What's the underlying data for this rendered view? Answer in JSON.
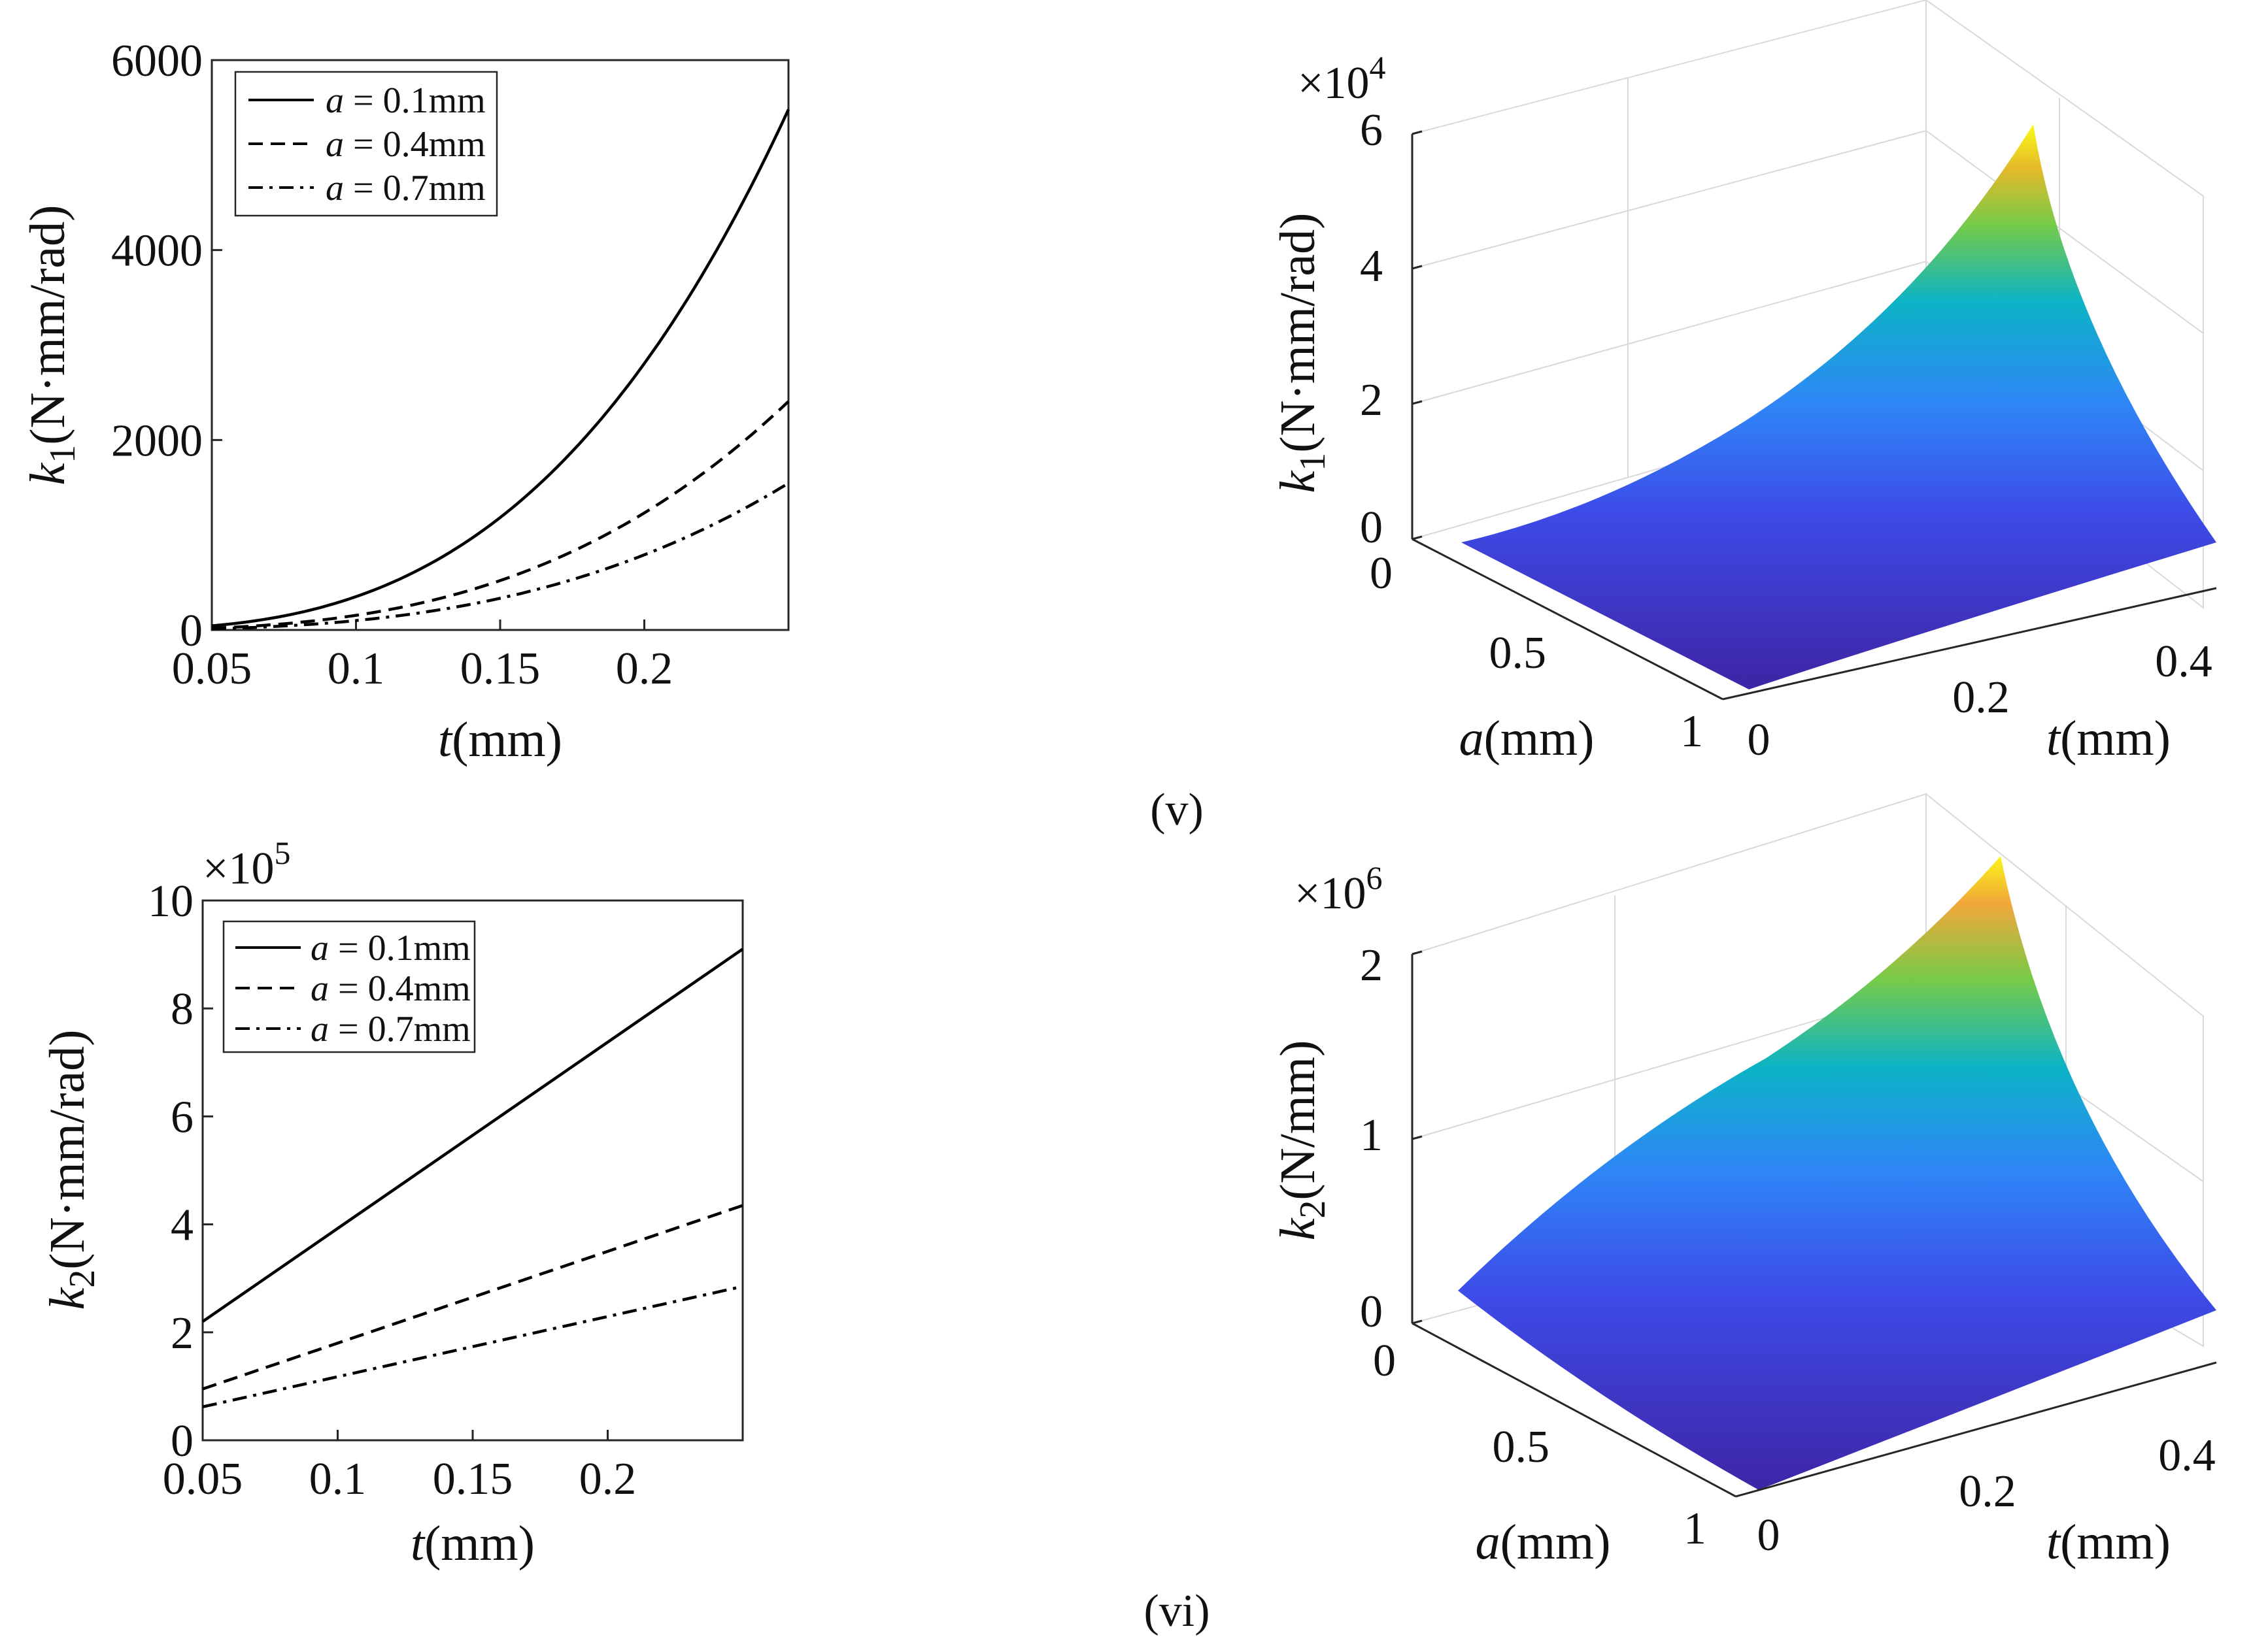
{
  "figure": {
    "panel_labels": [
      "(v)",
      "(vi)"
    ]
  },
  "colors": {
    "surface_low": "#3e26a8",
    "surface_mid1": "#2e87f7",
    "surface_mid2": "#0cb3c6",
    "surface_high": "#77cb47",
    "surface_peak": "#f9fb15",
    "line": "#000000",
    "grid": "#d9d9d9"
  },
  "chart_data": [
    {
      "id": "k1_t",
      "type": "line",
      "x": [
        0.05,
        0.075,
        0.1,
        0.125,
        0.15,
        0.175,
        0.2,
        0.225,
        0.25
      ],
      "series": [
        {
          "name": "a = 0.1mm",
          "dash": "solid",
          "values": [
            44,
            148,
            351,
            685,
            1184,
            1880,
            2806,
            3996,
            5480
          ]
        },
        {
          "name": "a = 0.4mm",
          "dash": "dashed",
          "values": [
            19,
            65,
            154,
            301,
            520,
            826,
            1232,
            1755,
            2407
          ]
        },
        {
          "name": "a = 0.7mm",
          "dash": "dashdot",
          "values": [
            12,
            42,
            99,
            193,
            334,
            530,
            791,
            1126,
            1545
          ]
        }
      ],
      "xlabel": "t(mm)",
      "xlabel_var": "t",
      "xlabel_unit": "(mm)",
      "ylabel": "k1(N·mm/rad)",
      "ylabel_var": "k",
      "ylabel_sub": "1",
      "ylabel_unit": "(N·mm/rad)",
      "xlim": [
        0.05,
        0.25
      ],
      "ylim": [
        0,
        6000
      ],
      "xticks": [
        0.05,
        0.1,
        0.15,
        0.2
      ],
      "xtick_labels": [
        "0.05",
        "0.1",
        "0.15",
        "0.2"
      ],
      "yticks": [
        0,
        2000,
        4000,
        6000
      ],
      "ytick_labels": [
        "0",
        "2000",
        "4000",
        "6000"
      ],
      "legend": {
        "position": "top-left",
        "entries": [
          {
            "var": "a",
            "rest": " = 0.1mm"
          },
          {
            "var": "a",
            "rest": " = 0.4mm"
          },
          {
            "var": "a",
            "rest": " = 0.7mm"
          }
        ]
      },
      "grid": false
    },
    {
      "id": "k1_surface",
      "type": "surface",
      "title": "",
      "zlabel": "k1(N·mm/rad)",
      "zlabel_var": "k",
      "zlabel_sub": "1",
      "zlabel_unit": "(N·mm/rad)",
      "xlabel": "t(mm)",
      "xlabel_var": "t",
      "xlabel_unit": "(mm)",
      "ylabel": "a(mm)",
      "ylabel_var": "a",
      "ylabel_unit": "(mm)",
      "zscale_label": "×10",
      "zscale_exp": "4",
      "zlim": [
        0,
        6
      ],
      "zticks": [
        0,
        2,
        4,
        6
      ],
      "ztick_labels": [
        "0",
        "2",
        "4",
        "6"
      ],
      "tticks": [
        0,
        0.2,
        0.4
      ],
      "ttick_labels": [
        "0",
        "0.2",
        "0.4"
      ],
      "aticks": [
        0,
        0.5,
        1
      ],
      "atick_labels": [
        "0",
        "0.5",
        "1"
      ],
      "peak_value": 6.1,
      "grid": true
    },
    {
      "id": "k2_t",
      "type": "line",
      "x": [
        0.05,
        0.25
      ],
      "series": [
        {
          "name": "a = 0.1mm",
          "dash": "solid",
          "values": [
            2.2,
            9.1
          ]
        },
        {
          "name": "a = 0.4mm",
          "dash": "dashed",
          "values": [
            0.95,
            4.35
          ]
        },
        {
          "name": "a = 0.7mm",
          "dash": "dashdot",
          "values": [
            0.62,
            2.85
          ]
        }
      ],
      "xlabel": "t(mm)",
      "xlabel_var": "t",
      "xlabel_unit": "(mm)",
      "ylabel": "k2(N·mm/rad)",
      "ylabel_var": "k",
      "ylabel_sub": "2",
      "ylabel_unit": "(N·mm/rad)",
      "yscale_label": "×10",
      "yscale_exp": "5",
      "xlim": [
        0.05,
        0.25
      ],
      "ylim": [
        0,
        10
      ],
      "xticks": [
        0.05,
        0.1,
        0.15,
        0.2
      ],
      "xtick_labels": [
        "0.05",
        "0.1",
        "0.15",
        "0.2"
      ],
      "yticks": [
        0,
        2,
        4,
        6,
        8,
        10
      ],
      "ytick_labels": [
        "0",
        "2",
        "4",
        "6",
        "8",
        "10"
      ],
      "legend": {
        "position": "top-left",
        "entries": [
          {
            "var": "a",
            "rest": " = 0.1mm"
          },
          {
            "var": "a",
            "rest": " = 0.4mm"
          },
          {
            "var": "a",
            "rest": " = 0.7mm"
          }
        ]
      },
      "grid": false
    },
    {
      "id": "k2_surface",
      "type": "surface",
      "title": "",
      "zlabel": "k2(N/mm)",
      "zlabel_var": "k",
      "zlabel_sub": "2",
      "zlabel_unit": "(N/mm)",
      "xlabel": "t(mm)",
      "xlabel_var": "t",
      "xlabel_unit": "(mm)",
      "ylabel": "a(mm)",
      "ylabel_var": "a",
      "ylabel_unit": "(mm)",
      "zscale_label": "×10",
      "zscale_exp": "6",
      "zlim": [
        0,
        2
      ],
      "zticks": [
        0,
        1,
        2
      ],
      "ztick_labels": [
        "0",
        "1",
        "2"
      ],
      "tticks": [
        0,
        0.2,
        0.4
      ],
      "ttick_labels": [
        "0",
        "0.2",
        "0.4"
      ],
      "aticks": [
        0,
        0.5,
        1
      ],
      "atick_labels": [
        "0",
        "0.5",
        "1"
      ],
      "peak_value": 2.2,
      "grid": true
    }
  ]
}
